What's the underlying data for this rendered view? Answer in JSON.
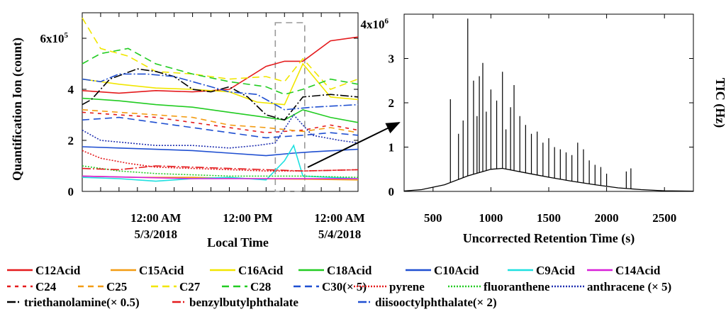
{
  "chart_data": [
    {
      "type": "line",
      "ylabel": "Quantification Ion (count)",
      "xlabel": "Local Time",
      "x_ticks": [
        {
          "x": 0.5,
          "label": "12:00 AM",
          "label2": "5/3/2018"
        },
        {
          "x": 1.0,
          "label": "12:00 PM",
          "label2": ""
        },
        {
          "x": 1.5,
          "label": "12:00 AM",
          "label2": "5/4/2018"
        }
      ],
      "xlim": [
        0.1,
        1.6
      ],
      "ylim": [
        0,
        700000
      ],
      "y_ticks": [
        0,
        200000,
        400000,
        600000
      ],
      "y_tick_labels": [
        "0",
        "2",
        "4",
        "6x10"
      ],
      "y_tick_sup": {
        "600000": "5"
      },
      "highlight_window": [
        1.15,
        1.31
      ],
      "series": [
        {
          "name": "C12Acid",
          "color": "#e41a1c",
          "dash": "solid",
          "x": [
            0.1,
            0.3,
            0.5,
            0.7,
            0.9,
            1.1,
            1.2,
            1.3,
            1.45,
            1.6
          ],
          "values": [
            395000,
            385000,
            395000,
            390000,
            400000,
            490000,
            510000,
            510000,
            590000,
            605000
          ]
        },
        {
          "name": "C15Acid",
          "color": "#f39c12",
          "dash": "solid",
          "x": [
            0.1,
            0.4,
            0.7,
            1.0,
            1.3,
            1.6
          ],
          "values": [
            60000,
            55000,
            55000,
            50000,
            48000,
            45000
          ]
        },
        {
          "name": "C16Acid",
          "color": "#f1e600",
          "dash": "solid",
          "x": [
            0.1,
            0.3,
            0.5,
            0.7,
            0.9,
            1.05,
            1.2,
            1.3,
            1.45,
            1.6
          ],
          "values": [
            440000,
            420000,
            405000,
            400000,
            390000,
            350000,
            340000,
            500000,
            370000,
            360000
          ]
        },
        {
          "name": "C18Acid",
          "color": "#22cc22",
          "dash": "solid",
          "x": [
            0.1,
            0.3,
            0.5,
            0.7,
            0.9,
            1.1,
            1.2,
            1.3,
            1.45,
            1.6
          ],
          "values": [
            365000,
            355000,
            340000,
            330000,
            310000,
            290000,
            280000,
            320000,
            290000,
            270000
          ]
        },
        {
          "name": "C10Acid",
          "color": "#1f4fd1",
          "dash": "solid",
          "x": [
            0.1,
            0.3,
            0.5,
            0.7,
            0.9,
            1.1,
            1.25,
            1.35,
            1.6
          ],
          "values": [
            175000,
            170000,
            165000,
            160000,
            150000,
            140000,
            150000,
            155000,
            165000
          ]
        },
        {
          "name": "C9Acid",
          "color": "#1ee0e0",
          "dash": "solid",
          "x": [
            0.1,
            0.3,
            0.5,
            0.7,
            0.9,
            1.1,
            1.2,
            1.25,
            1.3,
            1.45,
            1.6
          ],
          "values": [
            55000,
            50000,
            40000,
            50000,
            55000,
            45000,
            120000,
            180000,
            60000,
            55000,
            50000
          ]
        },
        {
          "name": "C14Acid",
          "color": "#d81fd8",
          "dash": "solid",
          "x": [
            0.1,
            0.4,
            0.7,
            1.0,
            1.3,
            1.6
          ],
          "values": [
            60000,
            55000,
            50000,
            50000,
            50000,
            50000
          ]
        },
        {
          "name": "C24",
          "color": "#e41a1c",
          "dash": "5,6",
          "x": [
            0.1,
            0.3,
            0.5,
            0.7,
            0.9,
            1.1,
            1.3,
            1.45,
            1.6
          ],
          "values": [
            310000,
            300000,
            290000,
            270000,
            250000,
            230000,
            240000,
            260000,
            240000
          ]
        },
        {
          "name": "C25",
          "color": "#f39c12",
          "dash": "8,6",
          "x": [
            0.1,
            0.3,
            0.5,
            0.7,
            0.9,
            1.1,
            1.3,
            1.45,
            1.6
          ],
          "values": [
            320000,
            310000,
            300000,
            290000,
            260000,
            250000,
            235000,
            250000,
            230000
          ]
        },
        {
          "name": "C27",
          "color": "#f1e600",
          "dash": "10,6",
          "x": [
            0.1,
            0.2,
            0.35,
            0.5,
            0.7,
            0.9,
            1.1,
            1.2,
            1.3,
            1.45,
            1.6
          ],
          "values": [
            680000,
            560000,
            530000,
            470000,
            460000,
            440000,
            450000,
            430000,
            520000,
            400000,
            440000
          ]
        },
        {
          "name": "C28",
          "color": "#22cc22",
          "dash": "10,6",
          "x": [
            0.1,
            0.2,
            0.35,
            0.5,
            0.7,
            0.9,
            1.1,
            1.2,
            1.3,
            1.45,
            1.6
          ],
          "values": [
            500000,
            540000,
            560000,
            500000,
            460000,
            430000,
            410000,
            380000,
            400000,
            440000,
            420000
          ]
        },
        {
          "name": "C30(× 5)",
          "color": "#1f4fd1",
          "dash": "10,6",
          "x": [
            0.1,
            0.3,
            0.5,
            0.7,
            0.9,
            1.1,
            1.3,
            1.45,
            1.6
          ],
          "values": [
            280000,
            290000,
            270000,
            250000,
            230000,
            210000,
            220000,
            230000,
            220000
          ]
        },
        {
          "name": "pyrene",
          "color": "#e41a1c",
          "dash": "2,2",
          "x": [
            0.1,
            0.2,
            0.35,
            0.5,
            0.7,
            0.9,
            1.1,
            1.3,
            1.6
          ],
          "values": [
            160000,
            130000,
            110000,
            95000,
            90000,
            85000,
            80000,
            80000,
            85000
          ]
        },
        {
          "name": "fluoranthene",
          "color": "#22cc22",
          "dash": "2,2",
          "x": [
            0.1,
            0.3,
            0.5,
            0.7,
            0.9,
            1.1,
            1.3,
            1.6
          ],
          "values": [
            100000,
            80000,
            70000,
            65000,
            60000,
            60000,
            60000,
            55000
          ]
        },
        {
          "name": "anthracene (× 5)",
          "color": "#1f2fb0",
          "dash": "2,2",
          "x": [
            0.1,
            0.2,
            0.35,
            0.5,
            0.7,
            0.9,
            1.05,
            1.15,
            1.25,
            1.35,
            1.5,
            1.6
          ],
          "values": [
            240000,
            200000,
            190000,
            180000,
            180000,
            170000,
            180000,
            190000,
            300000,
            220000,
            200000,
            190000
          ]
        },
        {
          "name": "triethanolamine(× 0.5)",
          "color": "#000000",
          "dash": "12,3,2,3",
          "x": [
            0.1,
            0.15,
            0.25,
            0.4,
            0.5,
            0.6,
            0.7,
            0.8,
            0.9,
            1.0,
            1.1,
            1.2,
            1.3,
            1.45,
            1.6
          ],
          "values": [
            340000,
            360000,
            440000,
            480000,
            470000,
            450000,
            400000,
            390000,
            410000,
            370000,
            300000,
            280000,
            370000,
            380000,
            370000
          ]
        },
        {
          "name": "benzylbutylphthalate",
          "color": "#e41a1c",
          "dash": "12,3,2,3",
          "x": [
            0.1,
            0.3,
            0.5,
            0.7,
            0.9,
            1.1,
            1.3,
            1.6
          ],
          "values": [
            90000,
            85000,
            100000,
            95000,
            90000,
            85000,
            80000,
            85000
          ]
        },
        {
          "name": "diisooctylphthalate(× 2)",
          "color": "#1f4fd1",
          "dash": "12,3,2,3",
          "x": [
            0.1,
            0.2,
            0.3,
            0.45,
            0.6,
            0.75,
            0.9,
            1.05,
            1.2,
            1.35,
            1.6
          ],
          "values": [
            440000,
            430000,
            460000,
            460000,
            450000,
            420000,
            390000,
            380000,
            320000,
            330000,
            340000
          ]
        }
      ]
    },
    {
      "type": "line",
      "xlabel": "Uncorrected Retention Time (s)",
      "ylabel": "TIC (Hz)",
      "xlim": [
        250,
        2750
      ],
      "ylim": [
        0,
        4000000
      ],
      "x_ticks": [
        500,
        1000,
        1500,
        2000,
        2500
      ],
      "y_ticks": [
        0,
        1000000,
        2000000,
        3000000,
        4000000
      ],
      "y_tick_labels": [
        "0",
        "1",
        "2",
        "3",
        "4x10"
      ],
      "y_tick_sup": {
        "4000000": "6"
      },
      "baseline": {
        "x": [
          250,
          400,
          600,
          800,
          1000,
          1100,
          1300,
          1500,
          1700,
          1900,
          2100,
          2300,
          2500,
          2750
        ],
        "values": [
          10000,
          40000,
          150000,
          350000,
          500000,
          520000,
          420000,
          320000,
          230000,
          150000,
          80000,
          40000,
          15000,
          5000
        ]
      },
      "peaks": [
        {
          "x": 650,
          "values": 2080000
        },
        {
          "x": 720,
          "values": 1300000
        },
        {
          "x": 760,
          "values": 1600000
        },
        {
          "x": 800,
          "values": 3900000
        },
        {
          "x": 850,
          "values": 2500000
        },
        {
          "x": 880,
          "values": 1700000
        },
        {
          "x": 900,
          "values": 2600000
        },
        {
          "x": 930,
          "values": 2900000
        },
        {
          "x": 960,
          "values": 1800000
        },
        {
          "x": 1000,
          "values": 2300000
        },
        {
          "x": 1050,
          "values": 2050000
        },
        {
          "x": 1100,
          "values": 2700000
        },
        {
          "x": 1130,
          "values": 1400000
        },
        {
          "x": 1170,
          "values": 1900000
        },
        {
          "x": 1200,
          "values": 2400000
        },
        {
          "x": 1250,
          "values": 1700000
        },
        {
          "x": 1300,
          "values": 1500000
        },
        {
          "x": 1350,
          "values": 1300000
        },
        {
          "x": 1400,
          "values": 1350000
        },
        {
          "x": 1450,
          "values": 1100000
        },
        {
          "x": 1500,
          "values": 1200000
        },
        {
          "x": 1550,
          "values": 1000000
        },
        {
          "x": 1600,
          "values": 950000
        },
        {
          "x": 1650,
          "values": 880000
        },
        {
          "x": 1700,
          "values": 820000
        },
        {
          "x": 1750,
          "values": 1100000
        },
        {
          "x": 1800,
          "values": 950000
        },
        {
          "x": 1850,
          "values": 700000
        },
        {
          "x": 1900,
          "values": 600000
        },
        {
          "x": 1950,
          "values": 550000
        },
        {
          "x": 2000,
          "values": 400000
        },
        {
          "x": 2170,
          "values": 450000
        },
        {
          "x": 2210,
          "values": 520000
        }
      ]
    }
  ],
  "legend": {
    "rows": [
      [
        "C12Acid",
        "C15Acid",
        "C16Acid",
        "C18Acid",
        "C10Acid",
        "C9Acid",
        "C14Acid"
      ],
      [
        "C24",
        "C25",
        "C27",
        "C28",
        "C30(× 5)",
        "pyrene",
        "fluoranthene",
        "anthracene (× 5)"
      ],
      [
        "triethanolamine(× 0.5)",
        "benzylbutylphthalate",
        "diisooctylphthalate(× 2)"
      ]
    ]
  }
}
